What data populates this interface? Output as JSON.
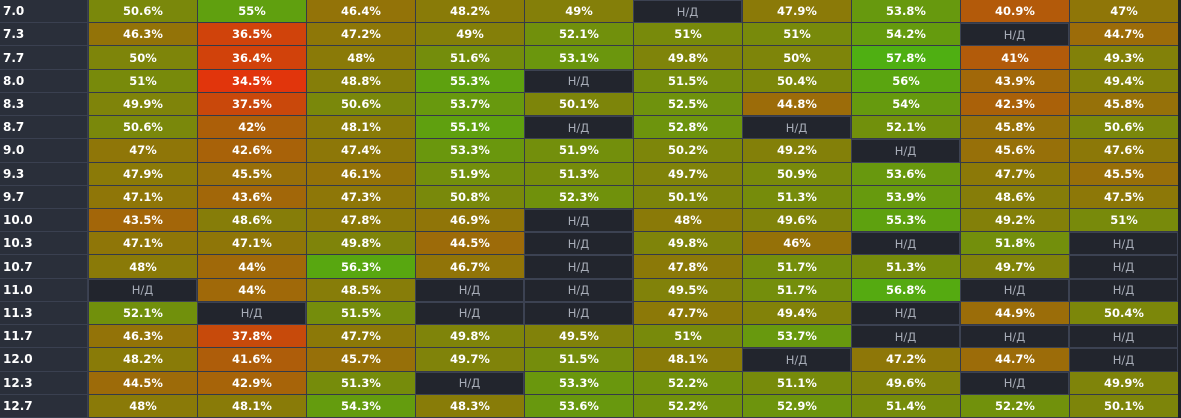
{
  "table": {
    "rows": [
      {
        "label": "7.0",
        "cells": [
          "50.6%",
          "55%",
          "46.4%",
          "48.2%",
          "49%",
          "Н/Д",
          "47.9%",
          "53.8%",
          "40.9%",
          "47%"
        ]
      },
      {
        "label": "7.3",
        "cells": [
          "46.3%",
          "36.5%",
          "47.2%",
          "49%",
          "52.1%",
          "51%",
          "51%",
          "54.2%",
          "Н/Д",
          "44.7%"
        ]
      },
      {
        "label": "7.7",
        "cells": [
          "50%",
          "36.4%",
          "48%",
          "51.6%",
          "53.1%",
          "49.8%",
          "50%",
          "57.8%",
          "41%",
          "49.3%"
        ]
      },
      {
        "label": "8.0",
        "cells": [
          "51%",
          "34.5%",
          "48.8%",
          "55.3%",
          "Н/Д",
          "51.5%",
          "50.4%",
          "56%",
          "43.9%",
          "49.4%"
        ]
      },
      {
        "label": "8.3",
        "cells": [
          "49.9%",
          "37.5%",
          "50.6%",
          "53.7%",
          "50.1%",
          "52.5%",
          "44.8%",
          "54%",
          "42.3%",
          "45.8%"
        ]
      },
      {
        "label": "8.7",
        "cells": [
          "50.6%",
          "42%",
          "48.1%",
          "55.1%",
          "Н/Д",
          "52.8%",
          "Н/Д",
          "52.1%",
          "45.8%",
          "50.6%"
        ]
      },
      {
        "label": "9.0",
        "cells": [
          "47%",
          "42.6%",
          "47.4%",
          "53.3%",
          "51.9%",
          "50.2%",
          "49.2%",
          "Н/Д",
          "45.6%",
          "47.6%"
        ]
      },
      {
        "label": "9.3",
        "cells": [
          "47.9%",
          "45.5%",
          "46.1%",
          "51.9%",
          "51.3%",
          "49.7%",
          "50.9%",
          "53.6%",
          "47.7%",
          "45.5%"
        ]
      },
      {
        "label": "9.7",
        "cells": [
          "47.1%",
          "43.6%",
          "47.3%",
          "50.8%",
          "52.3%",
          "50.1%",
          "51.3%",
          "53.9%",
          "48.6%",
          "47.5%"
        ]
      },
      {
        "label": "10.0",
        "cells": [
          "43.5%",
          "48.6%",
          "47.8%",
          "46.9%",
          "Н/Д",
          "48%",
          "49.6%",
          "55.3%",
          "49.2%",
          "51%"
        ]
      },
      {
        "label": "10.3",
        "cells": [
          "47.1%",
          "47.1%",
          "49.8%",
          "44.5%",
          "Н/Д",
          "49.8%",
          "46%",
          "Н/Д",
          "51.8%",
          "Н/Д"
        ]
      },
      {
        "label": "10.7",
        "cells": [
          "48%",
          "44%",
          "56.3%",
          "46.7%",
          "Н/Д",
          "47.8%",
          "51.7%",
          "51.3%",
          "49.7%",
          "Н/Д"
        ]
      },
      {
        "label": "11.0",
        "cells": [
          "Н/Д",
          "44%",
          "48.5%",
          "Н/Д",
          "Н/Д",
          "49.5%",
          "51.7%",
          "56.8%",
          "Н/Д",
          "Н/Д"
        ]
      },
      {
        "label": "11.3",
        "cells": [
          "52.1%",
          "Н/Д",
          "51.5%",
          "Н/Д",
          "Н/Д",
          "47.7%",
          "49.4%",
          "Н/Д",
          "44.9%",
          "50.4%"
        ]
      },
      {
        "label": "11.7",
        "cells": [
          "46.3%",
          "37.8%",
          "47.7%",
          "49.8%",
          "49.5%",
          "51%",
          "53.7%",
          "Н/Д",
          "Н/Д",
          "Н/Д"
        ]
      },
      {
        "label": "12.0",
        "cells": [
          "48.2%",
          "41.6%",
          "45.7%",
          "49.7%",
          "51.5%",
          "48.1%",
          "Н/Д",
          "47.2%",
          "44.7%",
          "Н/Д"
        ]
      },
      {
        "label": "12.3",
        "cells": [
          "44.5%",
          "42.9%",
          "51.3%",
          "Н/Д",
          "53.3%",
          "52.2%",
          "51.1%",
          "49.6%",
          "Н/Д",
          "49.9%"
        ]
      },
      {
        "label": "12.7",
        "cells": [
          "48%",
          "48.1%",
          "54.3%",
          "48.3%",
          "53.6%",
          "52.2%",
          "52.9%",
          "51.4%",
          "52.2%",
          "50.1%"
        ]
      }
    ]
  },
  "colors": {
    "na_bg": "#22252d",
    "low": "#e8300c",
    "mid": "#8a7a08",
    "high": "#4eb012"
  }
}
